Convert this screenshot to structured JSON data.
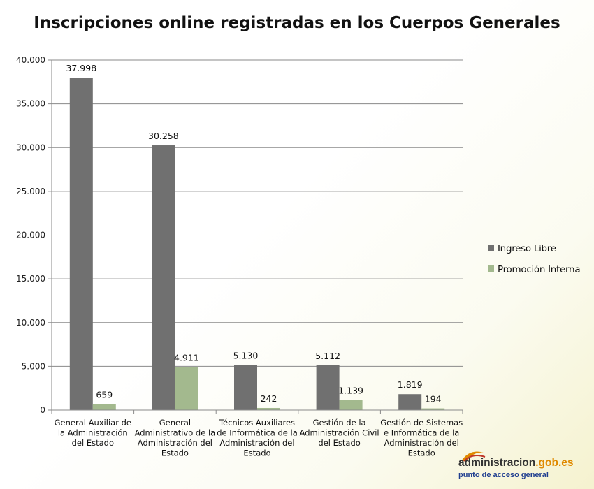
{
  "chart_data": {
    "type": "bar",
    "title": "Inscripciones online registradas en los Cuerpos Generales",
    "categories": [
      [
        "General Auxiliar de",
        "la Administración",
        "del Estado"
      ],
      [
        "General",
        "Administrativo de la",
        "Administración del",
        "Estado"
      ],
      [
        "Técnicos Auxiliares",
        "de Informática de la",
        "Administración del",
        "Estado"
      ],
      [
        "Gestión de la",
        "Administración Civil",
        "del Estado"
      ],
      [
        "Gestión de Sistemas",
        "e Informática de la",
        "Administración del",
        "Estado"
      ]
    ],
    "series": [
      {
        "name": "Ingreso Libre",
        "color": "#707070",
        "values": [
          37998,
          30258,
          5130,
          5112,
          1819
        ],
        "labels": [
          "37.998",
          "30.258",
          "5.130",
          "5.112",
          "1.819"
        ]
      },
      {
        "name": "Promoción Interna",
        "color": "#a3b98e",
        "values": [
          659,
          4911,
          242,
          1139,
          194
        ],
        "labels": [
          "659",
          "4.911",
          "242",
          "1.139",
          "194"
        ]
      }
    ],
    "ylim": [
      0,
      40000
    ],
    "yticks": [
      0,
      5000,
      10000,
      15000,
      20000,
      25000,
      30000,
      35000,
      40000
    ],
    "ytick_labels": [
      "0",
      "5.000",
      "10.000",
      "15.000",
      "20.000",
      "25.000",
      "30.000",
      "35.000",
      "40.000"
    ],
    "grid": true,
    "legend_position": "right",
    "xlabel": "",
    "ylabel": ""
  },
  "logo": {
    "name_part1": "administracion",
    "name_part2": ".gob.es",
    "tagline": "punto de acceso general"
  }
}
